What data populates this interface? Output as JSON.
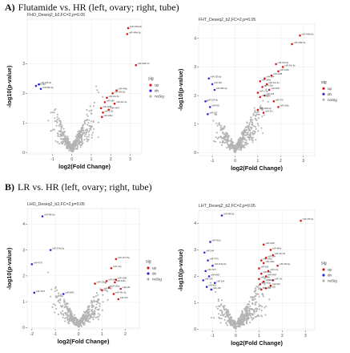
{
  "sections": [
    {
      "letter": "A)",
      "text": "Flutamide vs. HR (left, ovary; right, tube)"
    },
    {
      "letter": "B)",
      "text": "LR vs. HR (left, ovary; right, tube)"
    }
  ],
  "legend": {
    "title": "sig",
    "up": "up",
    "dn": "dn",
    "nosig": "noSig"
  },
  "colors": {
    "up": "#d7191c",
    "dn": "#2b2bd6",
    "nosig": "#b3b3b3"
  },
  "chart_data": [
    {
      "type": "scatter",
      "title": "FHO_Deseq2_b2,FC=2,p=0.05",
      "xlabel": "log2(Fold Change)",
      "ylabel": "-log10(p-value)",
      "xlim": [
        -2.3,
        3.6
      ],
      "ylim": [
        -0.05,
        4.5
      ],
      "xticks": [
        -1,
        0,
        1,
        2,
        3
      ],
      "yticks": [
        0,
        1,
        2,
        3
      ],
      "up": [
        [
          2.9,
          4.2,
          "miR-449a-5p"
        ],
        [
          2.85,
          4.0,
          "miR-449b-5p"
        ],
        [
          3.3,
          2.95,
          "miR-449b-3p"
        ],
        [
          2.3,
          2.1,
          "miR-449a"
        ],
        [
          2.1,
          2.0,
          "miR-34b-5p"
        ],
        [
          1.8,
          1.85,
          "miR-34c-5p"
        ],
        [
          1.7,
          1.7,
          "miR-184"
        ],
        [
          2.2,
          1.65,
          "miR-34c-3p"
        ],
        [
          1.5,
          1.5,
          "miR-1298"
        ],
        [
          1.9,
          1.45,
          "miR-4497"
        ],
        [
          1.6,
          1.35,
          "miR-1-3p"
        ],
        [
          1.55,
          1.2,
          "miR-190a"
        ]
      ],
      "dn": [
        [
          -1.7,
          2.3,
          "miR-205-5p"
        ],
        [
          -1.85,
          2.25,
          "miR-184"
        ],
        [
          -1.6,
          2.15,
          "miR-582-3p"
        ]
      ]
    },
    {
      "type": "scatter",
      "title": "FHT_Deseq2_b2,FC=2,p=0.05",
      "xlabel": "log2(Fold Change)",
      "ylabel": "-log10(p-value)",
      "xlim": [
        -1.6,
        3.5
      ],
      "ylim": [
        -0.1,
        4.5
      ],
      "xticks": [
        -1,
        0,
        1,
        2,
        3
      ],
      "yticks": [
        0,
        1,
        2,
        3,
        4
      ],
      "up": [
        [
          2.85,
          4.1,
          "miR-449a-5p"
        ],
        [
          2.5,
          3.8,
          "miR-449b-5p"
        ],
        [
          1.8,
          3.1,
          "miR-34b-5p"
        ],
        [
          2.1,
          3.0,
          "miR-34c-5p"
        ],
        [
          1.9,
          2.85,
          "miR-449a"
        ],
        [
          1.6,
          2.7,
          "miR-1298"
        ],
        [
          1.3,
          2.6,
          "miR-184"
        ],
        [
          1.1,
          2.5,
          "miR-190a"
        ],
        [
          1.4,
          2.4,
          "miR-34c-3p"
        ],
        [
          1.2,
          2.3,
          "miR-135a"
        ],
        [
          1.5,
          2.2,
          "miR-4497"
        ],
        [
          1.0,
          2.1,
          "miR-1-3p"
        ],
        [
          1.3,
          2.0,
          "miR-206"
        ],
        [
          1.1,
          1.95,
          "miR-9-5p"
        ],
        [
          1.7,
          1.8,
          "miR-375"
        ],
        [
          1.9,
          1.6,
          "miR-196a"
        ],
        [
          1.0,
          1.5,
          "miR-200b-3p"
        ],
        [
          1.25,
          1.4,
          "miR-141"
        ]
      ],
      "dn": [
        [
          -1.15,
          2.6,
          "miR-205-5p"
        ],
        [
          -1.0,
          2.4,
          "miR-184"
        ],
        [
          -0.9,
          2.2,
          "miR-582-3p"
        ],
        [
          -1.3,
          1.8,
          "miR-224-5p"
        ],
        [
          -1.1,
          1.6,
          "miR-452"
        ],
        [
          -1.2,
          1.35,
          "miR-150"
        ]
      ]
    },
    {
      "type": "scatter",
      "title": "LHO_Deseq2_b2,FC=2,p=0.05",
      "xlabel": "log2(Fold Change)",
      "ylabel": "-log10(p-value)",
      "xlim": [
        -2.2,
        2.6
      ],
      "ylim": [
        -0.05,
        4.6
      ],
      "xticks": [
        -2,
        -1,
        0,
        1,
        2
      ],
      "yticks": [
        0,
        1,
        2,
        3,
        4
      ],
      "up": [
        [
          1.6,
          2.65,
          "miR-1271-5p"
        ],
        [
          1.4,
          2.3,
          "miR-1-3p"
        ],
        [
          1.6,
          1.85,
          "miR-1298"
        ],
        [
          1.2,
          1.8,
          "miR-206"
        ],
        [
          1.55,
          1.75,
          "miR-449a"
        ],
        [
          0.7,
          1.7,
          "miR-135a"
        ],
        [
          1.3,
          1.55,
          "miR-190a"
        ],
        [
          1.8,
          1.5,
          "miR-184"
        ],
        [
          1.0,
          1.45,
          "miR-4497"
        ],
        [
          1.5,
          1.3,
          "miR-34c-3p"
        ],
        [
          1.7,
          1.1,
          "miR-375"
        ]
      ],
      "dn": [
        [
          -1.55,
          4.3,
          "miR-486-5p"
        ],
        [
          -1.2,
          3.0,
          "miR-374a-5p"
        ],
        [
          -2.0,
          2.45,
          "miR-4776"
        ],
        [
          -1.9,
          1.35,
          "miR-7975"
        ],
        [
          -0.65,
          1.3,
          "miR-6842"
        ]
      ]
    },
    {
      "type": "scatter",
      "title": "LHT_Deseq2_b2,FC=2,p=0.05",
      "xlabel": "log2(Fold Change)",
      "ylabel": "-log10(p-value)",
      "xlim": [
        -1.6,
        3.4
      ],
      "ylim": [
        -0.05,
        4.5
      ],
      "xticks": [
        -1,
        0,
        1,
        2,
        3
      ],
      "yticks": [
        0,
        1,
        2,
        3,
        4
      ],
      "up": [
        [
          2.8,
          4.1,
          "miR-375-3p"
        ],
        [
          1.2,
          3.2,
          "miR-1298"
        ],
        [
          1.5,
          3.0,
          "miR-449a"
        ],
        [
          1.6,
          2.8,
          "miR-34c-5p"
        ],
        [
          1.3,
          2.7,
          "miR-184"
        ],
        [
          1.1,
          2.6,
          "miR-190a"
        ],
        [
          1.2,
          2.5,
          "miR-135a"
        ],
        [
          1.8,
          2.4,
          "miR-34b-5p"
        ],
        [
          1.0,
          2.3,
          "miR-206"
        ],
        [
          1.4,
          2.2,
          "miR-1-3p"
        ],
        [
          1.1,
          2.1,
          "miR-9-5p"
        ],
        [
          1.3,
          2.0,
          "miR-4497"
        ],
        [
          1.0,
          1.9,
          "miR-196a"
        ],
        [
          1.6,
          1.85,
          "miR-141"
        ],
        [
          1.2,
          1.8,
          "miR-200b"
        ],
        [
          1.05,
          1.7,
          "miR-200c"
        ],
        [
          1.5,
          1.65,
          "miR-429"
        ],
        [
          1.3,
          1.55,
          "miR-182"
        ],
        [
          1.1,
          1.5,
          "miR-183"
        ]
      ],
      "dn": [
        [
          -0.6,
          4.3,
          "miR-486-5p"
        ],
        [
          -1.1,
          3.3,
          "miR-451a"
        ],
        [
          -1.35,
          2.9,
          "miR-144"
        ],
        [
          -1.2,
          2.6,
          "miR-4776"
        ],
        [
          -1.0,
          2.4,
          "miR-374a-5p"
        ],
        [
          -1.3,
          2.2,
          "miR-7975"
        ],
        [
          -1.15,
          2.0,
          "miR-6842"
        ],
        [
          -1.4,
          1.85,
          "miR-205"
        ],
        [
          -0.9,
          1.75,
          "miR-224"
        ],
        [
          -1.25,
          1.6,
          "miR-452"
        ],
        [
          -1.05,
          1.5,
          "miR-150"
        ]
      ]
    }
  ]
}
